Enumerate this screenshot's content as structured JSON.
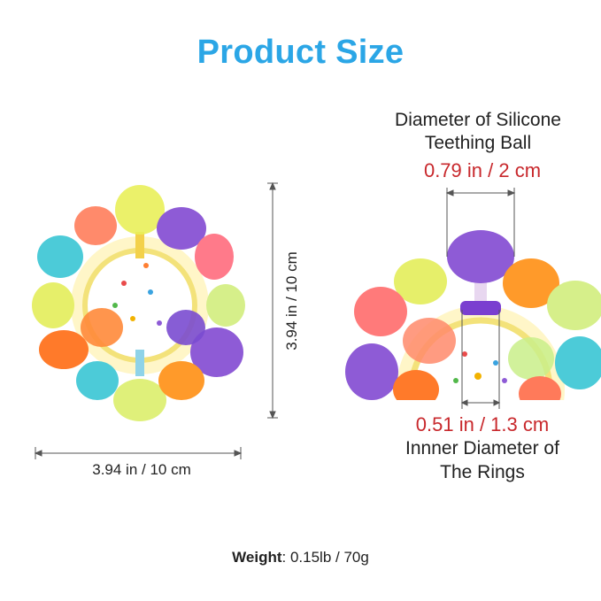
{
  "title": "Product Size",
  "left": {
    "height_label": "3.94 in / 10 cm",
    "width_label": "3.94 in / 10 cm"
  },
  "right": {
    "top_label_line1": "Diameter of Silicone",
    "top_label_line2": "Teething Ball",
    "top_value": "0.79 in / 2 cm",
    "bottom_value": "0.51 in / 1.3 cm",
    "bottom_label_line1": "Innner Diameter of",
    "bottom_label_line2": "The Rings"
  },
  "weight": {
    "label": "Weight",
    "value": ": 0.15lb / 70g"
  },
  "colors": {
    "title": "#2ba6e6",
    "value_red": "#c8282c"
  }
}
